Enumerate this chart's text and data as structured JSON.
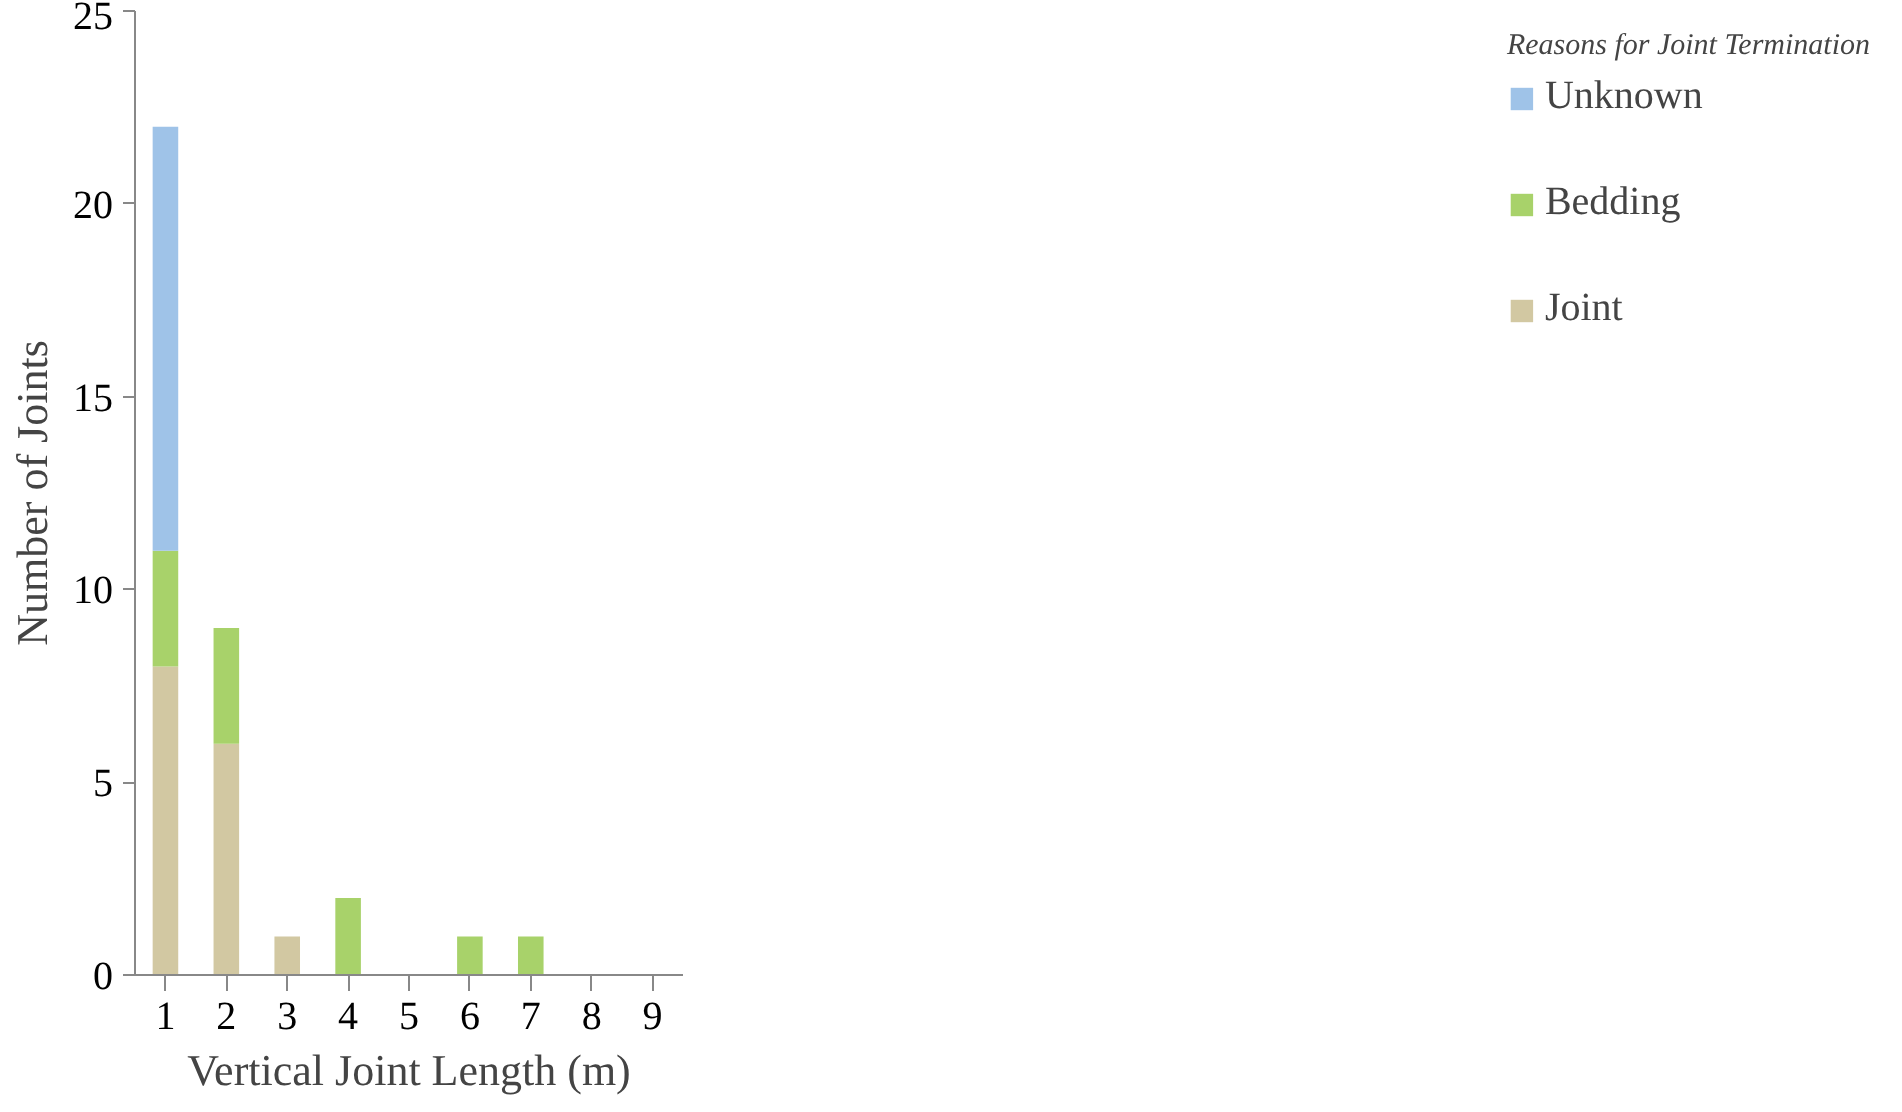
{
  "chart_data": {
    "type": "bar",
    "stacked": true,
    "xlabel": "Vertical Joint Length (m)",
    "ylabel": "Number of Joints",
    "legend_title": "Reasons for Joint Termination",
    "categories": [
      "1",
      "2",
      "3",
      "4",
      "5",
      "6",
      "7",
      "8",
      "9"
    ],
    "series": [
      {
        "name": "Joint",
        "color": "#d2c8a2",
        "values": [
          8,
          6,
          1,
          0,
          0,
          0,
          0,
          0,
          0
        ]
      },
      {
        "name": "Bedding",
        "color": "#a8d26a",
        "values": [
          3,
          3,
          0,
          2,
          0,
          1,
          1,
          0,
          0
        ]
      },
      {
        "name": "Unknown",
        "color": "#9fc3e8",
        "values": [
          11,
          0,
          0,
          0,
          0,
          0,
          0,
          0,
          0
        ]
      }
    ],
    "ylim": [
      0,
      25
    ],
    "yticks": [
      0,
      5,
      10,
      15,
      20,
      25
    ],
    "grid": false,
    "legend": "right"
  }
}
